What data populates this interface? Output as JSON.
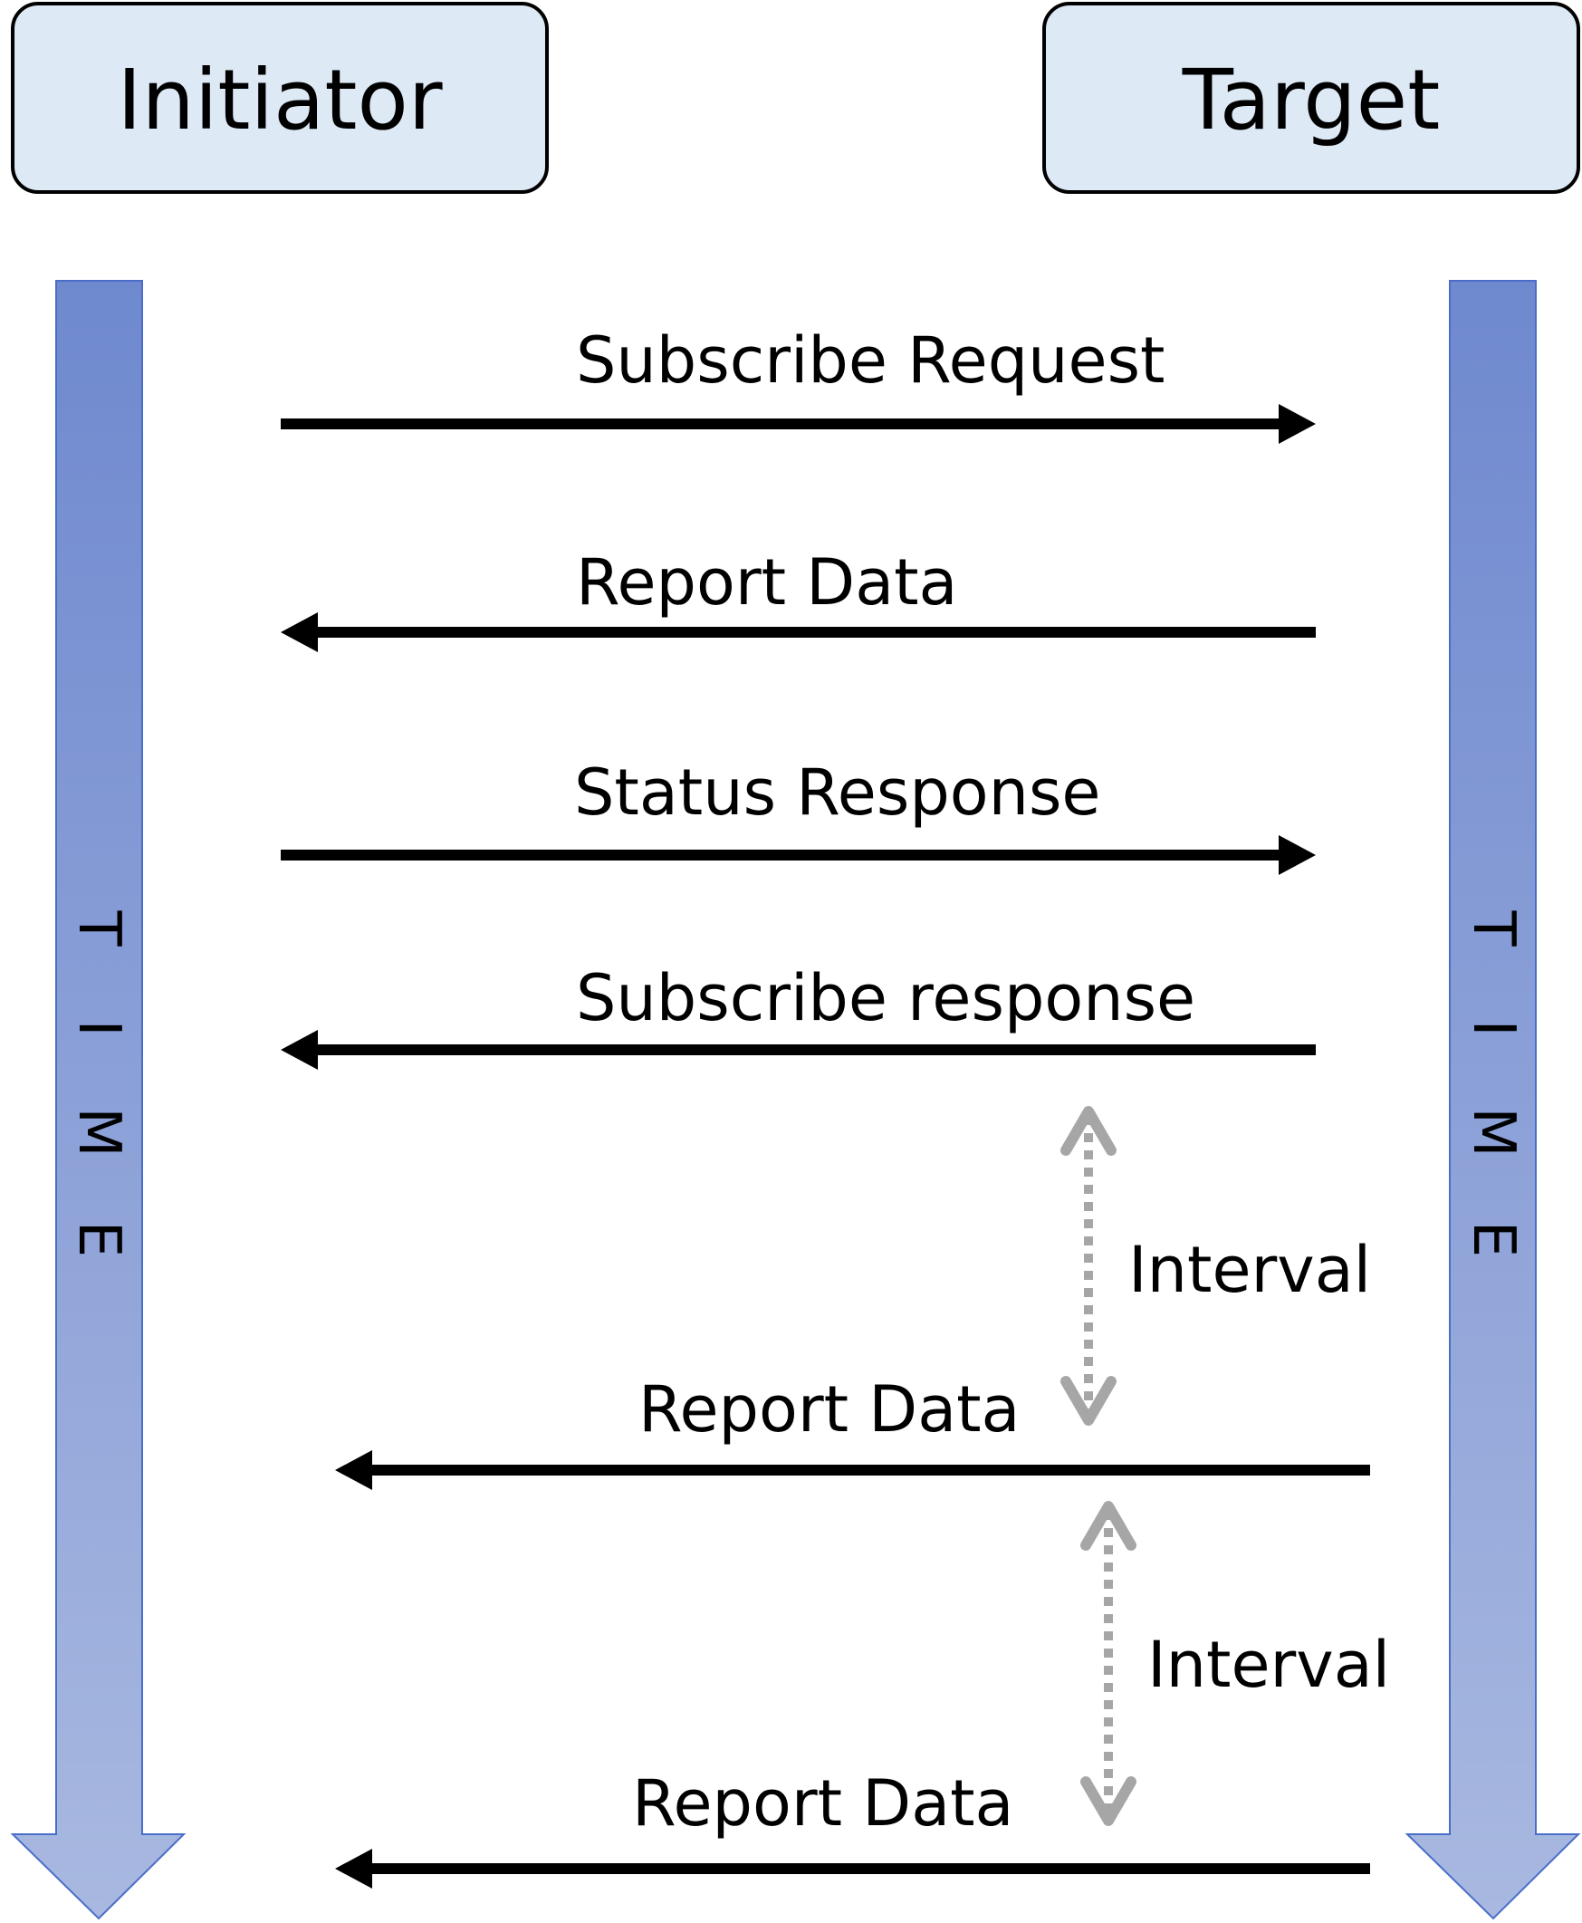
{
  "diagram": {
    "type": "sequence",
    "participants": [
      {
        "id": "initiator",
        "label": "Initiator"
      },
      {
        "id": "target",
        "label": "Target"
      }
    ],
    "timelines": [
      {
        "id": "left",
        "label": [
          "T",
          "I",
          "M",
          "E"
        ]
      },
      {
        "id": "right",
        "label": [
          "T",
          "I",
          "M",
          "E"
        ]
      }
    ],
    "messages": [
      {
        "label": "Subscribe Request",
        "direction": "to-target"
      },
      {
        "label": "Report Data",
        "direction": "to-initiator"
      },
      {
        "label": "Status Response",
        "direction": "to-target"
      },
      {
        "label": "Subscribe response",
        "direction": "to-initiator"
      },
      {
        "label": "Report Data",
        "direction": "to-initiator"
      },
      {
        "label": "Report Data",
        "direction": "to-initiator"
      }
    ],
    "intervals": [
      {
        "label": "Interval"
      },
      {
        "label": "Interval"
      }
    ],
    "colors": {
      "participant_fill": "#dde9f5",
      "participant_stroke": "#000000",
      "timeline_fill": "#9aabdb",
      "timeline_stroke": "#4a6ec8",
      "message_arrow": "#000000",
      "interval_arrow": "#a6a6a6"
    }
  }
}
